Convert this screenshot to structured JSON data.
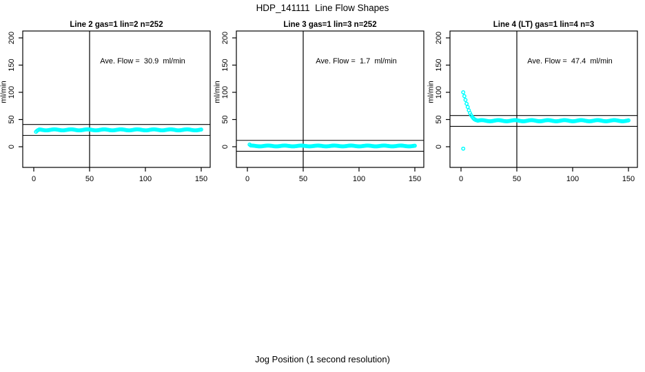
{
  "page": {
    "title": "HDP_141111  Line Flow Shapes",
    "x_axis_label": "Jog Position (1 second resolution)"
  },
  "colors": {
    "point": "#00FFFF",
    "axis": "#000000",
    "background": "#FFFFFF"
  },
  "chart_data": [
    {
      "type": "scatter",
      "title": "Line 2 gas=1 lin=2 n=252",
      "line_label": "Line 2",
      "gas": 1,
      "lin": 2,
      "n": 252,
      "ave_flow_ml_min": 30.9,
      "annotation": "Ave. Flow =  30.9  ml/min",
      "ylabel": "ml/min",
      "x_ticks": [
        0,
        50,
        100,
        150
      ],
      "y_ticks": [
        0,
        50,
        100,
        150,
        200
      ],
      "xlim": [
        -10,
        158
      ],
      "ylim": [
        -38,
        213
      ],
      "grid": false,
      "vline_x": 50,
      "hlines": [
        20.9,
        40.9
      ],
      "series": {
        "head": [
          [
            2,
            27.5
          ],
          [
            3,
            29.5
          ],
          [
            4,
            30.7
          ]
        ],
        "steady": {
          "x_from": 5,
          "x_to": 150,
          "value": 31.0,
          "jitter": 0.9
        },
        "outliers": []
      }
    },
    {
      "type": "scatter",
      "title": "Line 3 gas=1 lin=3 n=252",
      "line_label": "Line 3",
      "gas": 1,
      "lin": 3,
      "n": 252,
      "ave_flow_ml_min": 1.7,
      "annotation": "Ave. Flow =  1.7  ml/min",
      "ylabel": "ml/min",
      "x_ticks": [
        0,
        50,
        100,
        150
      ],
      "y_ticks": [
        0,
        50,
        100,
        150,
        200
      ],
      "xlim": [
        -10,
        158
      ],
      "ylim": [
        -38,
        213
      ],
      "grid": false,
      "vline_x": 50,
      "hlines": [
        -8.3,
        11.7
      ],
      "series": {
        "head": [
          [
            2,
            4.0
          ],
          [
            3,
            2.3
          ]
        ],
        "steady": {
          "x_from": 4,
          "x_to": 150,
          "value": 1.4,
          "jitter": 0.7
        },
        "outliers": []
      }
    },
    {
      "type": "scatter",
      "title": "Line 4 (LT) gas=1 lin=4 n=3",
      "line_label": "Line 4 (LT)",
      "gas": 1,
      "lin": 4,
      "n": 3,
      "ave_flow_ml_min": 47.4,
      "annotation": "Ave. Flow =  47.4  ml/min",
      "ylabel": "ml/min",
      "x_ticks": [
        0,
        50,
        100,
        150
      ],
      "y_ticks": [
        0,
        50,
        100,
        150,
        200
      ],
      "xlim": [
        -10,
        158
      ],
      "ylim": [
        -38,
        213
      ],
      "grid": false,
      "vline_x": 50,
      "hlines": [
        37.4,
        57.4
      ],
      "series": {
        "head": [
          [
            2,
            100
          ],
          [
            3,
            93
          ],
          [
            4,
            86
          ],
          [
            5,
            79
          ],
          [
            6,
            73
          ],
          [
            7,
            67
          ],
          [
            8,
            62
          ],
          [
            9,
            58
          ],
          [
            10,
            55
          ],
          [
            11,
            52.5
          ],
          [
            12,
            50.5
          ],
          [
            13,
            49.3
          ],
          [
            14,
            48.6
          ]
        ],
        "steady": {
          "x_from": 15,
          "x_to": 150,
          "value": 47.8,
          "jitter": 1.0
        },
        "outliers": [
          [
            2,
            -3.5
          ]
        ]
      }
    }
  ]
}
